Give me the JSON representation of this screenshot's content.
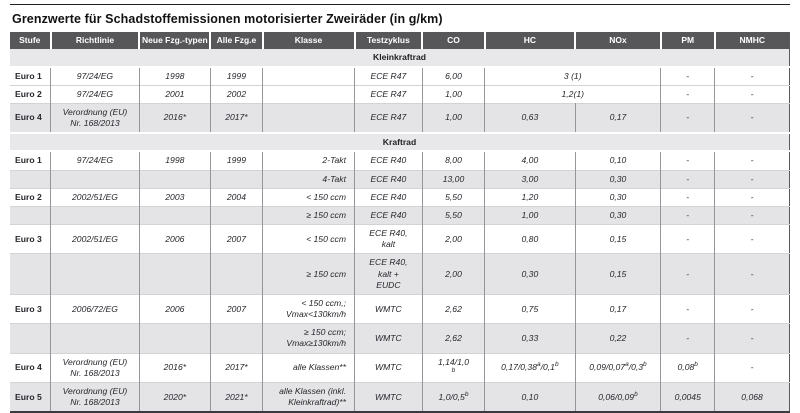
{
  "page": {
    "title": "Grenzwerte für Schadstoffemissionen motorisierter Zweiräder (in g/km)"
  },
  "table": {
    "columns": [
      "Stufe",
      "Richtlinie",
      "Neue Fzg.-typen",
      "Alle Fzg.e",
      "Klasse",
      "Testzyklus",
      "CO",
      "HC",
      "NOx",
      "PM",
      "NMHC"
    ],
    "colors": {
      "header_bg": "#57575a",
      "header_text": "#ffffff",
      "row_shade": "#e4e4e7",
      "section_bg": "#e8e8ea",
      "body_text": "#26262c"
    },
    "sections": [
      {
        "title": "Kleinkraftrad",
        "rows": [
          {
            "stufe": "Euro 1",
            "richtlinie": "97/24/EG",
            "neue": "1998",
            "alle": "1999",
            "klasse": "",
            "testzyklus": "ECE R47",
            "co": "6,00",
            "hc_nox": "3 (1)",
            "pm": "-",
            "nmhc": "-",
            "shaded": false
          },
          {
            "stufe": "Euro 2",
            "richtlinie": "97/24/EG",
            "neue": "2001",
            "alle": "2002",
            "klasse": "",
            "testzyklus": "ECE R47",
            "co": "1,00",
            "hc_nox": "1,2(1)",
            "pm": "-",
            "nmhc": "-",
            "shaded": false
          },
          {
            "stufe": "Euro 4",
            "richtlinie": "Verordnung (EU)\nNr. 168/2013",
            "neue": "2016*",
            "alle": "2017*",
            "klasse": "",
            "testzyklus": "ECE R47",
            "co": "1,00",
            "hc": "0,63",
            "nox": "0,17",
            "pm": "-",
            "nmhc": "-",
            "shaded": true
          }
        ]
      },
      {
        "title": "Kraftrad",
        "rows": [
          {
            "stufe": "Euro 1",
            "richtlinie": "97/24/EG",
            "neue": "1998",
            "alle": "1999",
            "klasse": "2-Takt",
            "testzyklus": "ECE R40",
            "co": "8,00",
            "hc": "4,00",
            "nox": "0,10",
            "pm": "-",
            "nmhc": "-",
            "shaded": false
          },
          {
            "stufe": "",
            "richtlinie": "",
            "neue": "",
            "alle": "",
            "klasse": "4-Takt",
            "testzyklus": "ECE R40",
            "co": "13,00",
            "hc": "3,00",
            "nox": "0,30",
            "pm": "-",
            "nmhc": "-",
            "shaded": true
          },
          {
            "stufe": "Euro 2",
            "richtlinie": "2002/51/EG",
            "neue": "2003",
            "alle": "2004",
            "klasse": "< 150 ccm",
            "testzyklus": "ECE R40",
            "co": "5,50",
            "hc": "1,20",
            "nox": "0,30",
            "pm": "-",
            "nmhc": "-",
            "shaded": false
          },
          {
            "stufe": "",
            "richtlinie": "",
            "neue": "",
            "alle": "",
            "klasse": "≥ 150 ccm",
            "testzyklus": "ECE R40",
            "co": "5,50",
            "hc": "1,00",
            "nox": "0,30",
            "pm": "-",
            "nmhc": "-",
            "shaded": true
          },
          {
            "stufe": "Euro 3",
            "richtlinie": "2002/51/EG",
            "neue": "2006",
            "alle": "2007",
            "klasse": "< 150 ccm",
            "testzyklus": "ECE R40,\nkalt",
            "co": "2,00",
            "hc": "0,80",
            "nox": "0,15",
            "pm": "-",
            "nmhc": "-",
            "shaded": false
          },
          {
            "stufe": "",
            "richtlinie": "",
            "neue": "",
            "alle": "",
            "klasse": "≥ 150 ccm",
            "testzyklus": "ECE R40,\nkalt +\nEUDC",
            "co": "2,00",
            "hc": "0,30",
            "nox": "0,15",
            "pm": "-",
            "nmhc": "-",
            "shaded": true
          },
          {
            "stufe": "Euro 3",
            "richtlinie": "2006/72/EG",
            "neue": "2006",
            "alle": "2007",
            "klasse": "< 150 ccm,;\nVmax<130km/h",
            "testzyklus": "WMTC",
            "co": "2,62",
            "hc": "0,75",
            "nox": "0,17",
            "pm": "-",
            "nmhc": "-",
            "shaded": false
          },
          {
            "stufe": "",
            "richtlinie": "",
            "neue": "",
            "alle": "",
            "klasse": "≥ 150 ccm;\nVmax≥130km/h",
            "testzyklus": "WMTC",
            "co": "2,62",
            "hc": "0,33",
            "nox": "0,22",
            "pm": "-",
            "nmhc": "-",
            "shaded": true
          },
          {
            "stufe": "Euro 4",
            "richtlinie": "Verordnung (EU)\nNr. 168/2013",
            "neue": "2016*",
            "alle": "2017*",
            "klasse": "alle Klassen**",
            "testzyklus": "WMTC",
            "co": "1,14/1,0\n^b",
            "hc": "0,17/0,38^a/0,1^b",
            "nox": "0,09/0,07^a/0,3^b",
            "pm": "0,08^b",
            "nmhc": "-",
            "shaded": false
          },
          {
            "stufe": "Euro 5",
            "richtlinie": "Verordnung (EU)\nNr. 168/2013",
            "neue": "2020*",
            "alle": "2021*",
            "klasse": "alle Klassen (inkl.\nKleinkraftrad)**",
            "testzyklus": "WMTC",
            "co": "1,0/0,5^b",
            "hc": "0,10",
            "nox": "0,06/0,09^b",
            "pm": "0,0045",
            "nmhc": "0,068",
            "shaded": true
          }
        ]
      }
    ]
  }
}
